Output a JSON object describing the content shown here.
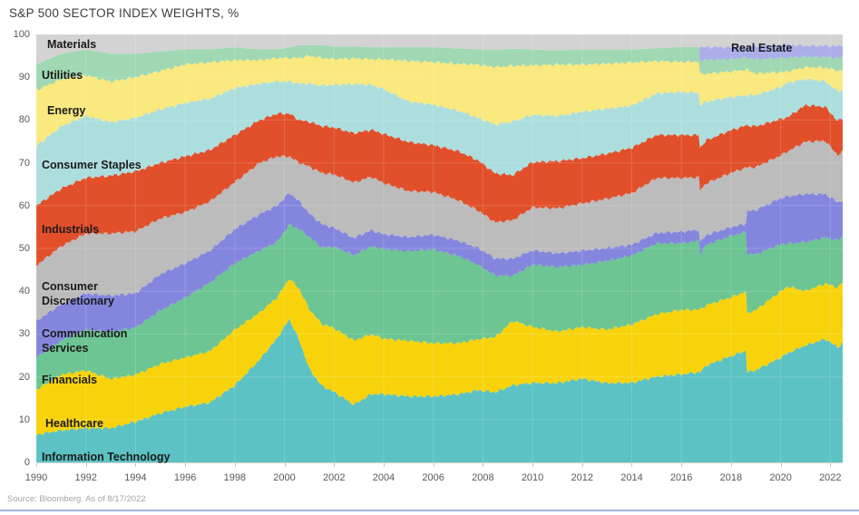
{
  "title": "S&P 500 SECTOR INDEX WEIGHTS, %",
  "source_note": "Source: Bloomberg. As of 8/17/2022",
  "accent_rule_color": "#7b9fd4",
  "chart_data": {
    "type": "area",
    "stacked": true,
    "normalized_to_100": true,
    "title": "S&P 500 SECTOR INDEX WEIGHTS, %",
    "xlabel": "",
    "ylabel": "%",
    "xlim": [
      1990,
      2022.5
    ],
    "ylim": [
      0,
      100
    ],
    "grid": "faint-white",
    "legend_position": "labels-inside-areas",
    "x_ticks": [
      1990,
      1992,
      1994,
      1996,
      1998,
      2000,
      2002,
      2004,
      2006,
      2008,
      2010,
      2012,
      2014,
      2016,
      2018,
      2020,
      2022
    ],
    "y_ticks": [
      0,
      10,
      20,
      30,
      40,
      50,
      60,
      70,
      80,
      90,
      100
    ],
    "x": [
      1990,
      1991,
      1992,
      1993,
      1994,
      1995,
      1996,
      1997,
      1998,
      1999,
      1999.7,
      2000.2,
      2000.6,
      2001,
      2001.5,
      2002,
      2002.8,
      2003.5,
      2004,
      2005,
      2006,
      2007,
      2007.8,
      2008.5,
      2009.2,
      2010,
      2011,
      2012,
      2013,
      2014,
      2015,
      2016,
      2016.7,
      2016.75,
      2017,
      2018,
      2018.6,
      2018.65,
      2019,
      2020,
      2020.3,
      2021,
      2021.8,
      2022.3,
      2022.5
    ],
    "series": [
      {
        "name": "Information Technology",
        "color": "#5cc2c3",
        "values": [
          6.5,
          7.5,
          8,
          8,
          9.5,
          11.5,
          13,
          14,
          18,
          24,
          29,
          33.5,
          28.5,
          22,
          18,
          16.5,
          13.5,
          16,
          16,
          15.5,
          15.5,
          16,
          17,
          16.5,
          18,
          18.5,
          18.5,
          19.5,
          18.5,
          18.5,
          20,
          20.5,
          21,
          21,
          22.5,
          25,
          26,
          21,
          21.5,
          24.5,
          25.5,
          27.5,
          29,
          27,
          28
        ]
      },
      {
        "name": "Healthcare",
        "color": "#f8d30c",
        "values": [
          10.5,
          13,
          13.5,
          11.5,
          11,
          11.5,
          11.5,
          12,
          13,
          11,
          9.5,
          9.5,
          12,
          14,
          14.5,
          15,
          15,
          14,
          13,
          13,
          12.5,
          12,
          12,
          13,
          15,
          13,
          12,
          12,
          12.5,
          13.5,
          14.5,
          15,
          14.5,
          14.5,
          14,
          13.8,
          13.8,
          13.8,
          14,
          15.5,
          15.5,
          12.8,
          13,
          14,
          14.3
        ]
      },
      {
        "name": "Financials",
        "color": "#6cc592",
        "values": [
          7.5,
          8,
          9.5,
          11,
          11,
          12.5,
          14,
          16,
          15.5,
          14.5,
          13,
          12.5,
          14,
          17,
          18,
          19,
          20,
          20.5,
          21,
          21,
          22,
          20.5,
          17.5,
          14.5,
          10.5,
          14.5,
          15,
          14.5,
          16,
          16,
          16.5,
          15.5,
          16,
          13,
          14,
          14.5,
          13.8,
          13.8,
          13,
          11,
          10,
          11.5,
          10.8,
          11,
          10.8
        ]
      },
      {
        "name": "Communication Services",
        "color": "#8486de",
        "values": [
          8.5,
          8.5,
          8.5,
          8.5,
          8,
          8.5,
          8,
          7.5,
          8,
          8.5,
          8.5,
          7.5,
          6.5,
          5.5,
          5.5,
          4.5,
          4,
          3.8,
          3.5,
          3.3,
          3.5,
          3.6,
          4,
          4,
          4,
          3.3,
          3.2,
          3.3,
          3,
          2.5,
          2.4,
          2.7,
          2.6,
          2.6,
          2.3,
          2,
          2,
          10,
          10.3,
          10.8,
          11,
          11.3,
          10.2,
          9,
          8.3
        ]
      },
      {
        "name": "Consumer Discretionary",
        "color": "#bcbcbc",
        "values": [
          13,
          13.5,
          14,
          14.5,
          14.5,
          13,
          12,
          11.5,
          11,
          12,
          11.5,
          8.5,
          9,
          11,
          12,
          12.5,
          13,
          12.5,
          12,
          10.8,
          10,
          9.5,
          8.8,
          8.5,
          9,
          10,
          10.5,
          11,
          11.5,
          12,
          12.8,
          12.5,
          12.2,
          12.2,
          12,
          12.8,
          13,
          10.2,
          10,
          10,
          10.5,
          12.3,
          12.5,
          11,
          11.5
        ]
      },
      {
        "name": "Industrials",
        "color": "#e1502b",
        "values": [
          14,
          13.5,
          13,
          13.5,
          14,
          13,
          13,
          12,
          11,
          10,
          10,
          10,
          10,
          10.5,
          11,
          11,
          11.5,
          11,
          11.5,
          11.5,
          11,
          11.5,
          11.8,
          11.5,
          10.5,
          10.5,
          11,
          10.5,
          10.5,
          10.5,
          10,
          10,
          9.8,
          9.8,
          10,
          10,
          9.8,
          9.8,
          9.5,
          8.5,
          8,
          8.6,
          8,
          8,
          7.9
        ]
      },
      {
        "name": "Consumer Staples",
        "color": "#addede",
        "values": [
          14,
          14.5,
          14.5,
          12.5,
          12.5,
          12.5,
          12.5,
          12,
          11,
          8.5,
          7.5,
          7.5,
          8.5,
          9,
          9.5,
          10,
          11.5,
          10.5,
          10.5,
          9.5,
          9.5,
          9.5,
          10,
          11.5,
          12.5,
          11,
          10.5,
          10.8,
          10.5,
          9.8,
          9.7,
          10,
          9.8,
          9.8,
          9,
          7.8,
          7,
          7,
          7.3,
          7.5,
          8,
          6.1,
          6,
          7,
          6.6
        ]
      },
      {
        "name": "Energy",
        "color": "#f9e97e",
        "values": [
          13,
          11,
          9.5,
          9.5,
          9.5,
          9,
          9,
          8.5,
          6.5,
          5.5,
          5.5,
          5.5,
          6,
          6.5,
          6.5,
          6,
          6,
          6,
          7,
          9.5,
          10,
          11,
          12.5,
          13.5,
          13,
          11.5,
          12,
          11,
          10.5,
          10,
          7.5,
          7,
          7.3,
          7.3,
          6.5,
          6,
          6,
          6,
          5,
          3.5,
          2.6,
          2.8,
          3.2,
          4.8,
          4.6
        ]
      },
      {
        "name": "Utilities",
        "color": "#9fd8b3",
        "values": [
          6,
          6,
          6,
          6.5,
          5.5,
          4.5,
          3.5,
          3,
          3,
          2.5,
          2,
          2.5,
          3,
          2.5,
          3,
          3,
          2.8,
          2.8,
          2.8,
          3.2,
          3.5,
          3.6,
          3.6,
          4,
          4,
          3.7,
          3.3,
          3.5,
          3.3,
          3,
          3,
          3.5,
          3.4,
          3.2,
          3.2,
          2.9,
          2.8,
          2.8,
          3.3,
          3.3,
          3.2,
          2.5,
          2.5,
          3,
          3
        ]
      },
      {
        "name": "Real Estate",
        "color": "#abaee8",
        "values": [
          0,
          0,
          0,
          0,
          0,
          0,
          0,
          0,
          0,
          0,
          0,
          0,
          0,
          0,
          0,
          0,
          0,
          0,
          0,
          0,
          0,
          0,
          0,
          0,
          0,
          0,
          0,
          0,
          0,
          0,
          0,
          0,
          0,
          3.1,
          3,
          2.8,
          2.7,
          2.7,
          3.1,
          3,
          3,
          2.5,
          2.7,
          2.8,
          2.9
        ]
      },
      {
        "name": "Materials",
        "color": "#d3d3d3",
        "values": [
          7,
          4.5,
          3.5,
          4.5,
          4.5,
          4,
          3.5,
          3.5,
          3,
          3.5,
          3.5,
          3,
          2.5,
          2.5,
          2.5,
          2.8,
          2.8,
          3,
          3,
          3,
          3,
          3.3,
          3.5,
          3.7,
          3.3,
          3.5,
          3.7,
          3.5,
          3.5,
          3.5,
          3.2,
          2.9,
          2.9,
          2.9,
          2.9,
          3,
          2.7,
          2.7,
          2.7,
          2.5,
          2.4,
          2.7,
          2.6,
          2.7,
          2.5
        ]
      }
    ]
  }
}
